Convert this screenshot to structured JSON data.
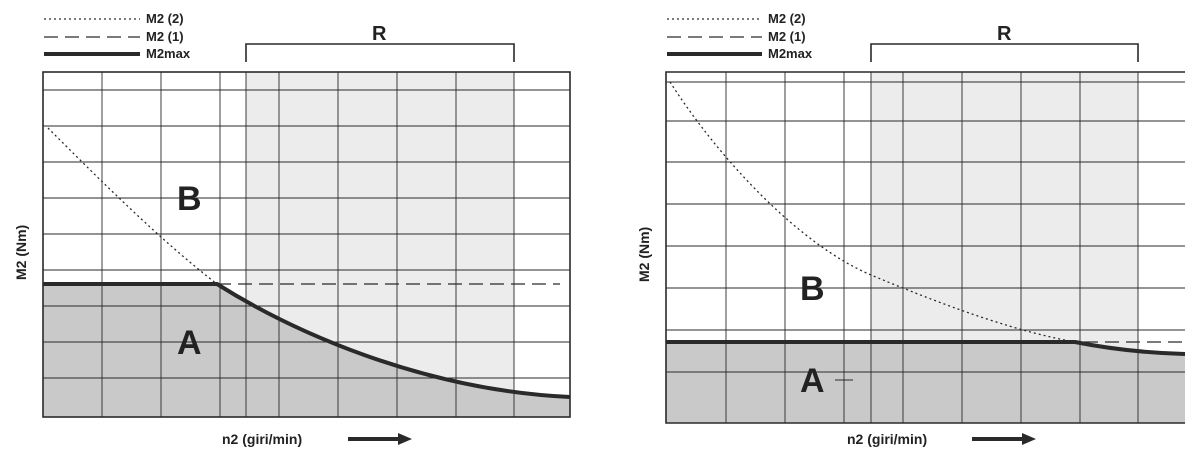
{
  "legend": {
    "items": [
      {
        "label": "M2 (2)",
        "style": "dotted"
      },
      {
        "label": "M2 (1)",
        "style": "dashed"
      },
      {
        "label": "M2max",
        "style": "solid-thick"
      }
    ]
  },
  "region_labels": {
    "a": "A",
    "b": "B",
    "r": "R"
  },
  "axes": {
    "x_label": "n2 (giri/min)",
    "y_label": "M2 (Nm)"
  },
  "colors": {
    "line": "#2a2a2a",
    "region_a_fill": "#c9c9c9",
    "region_r_fill": "#ececec",
    "background": "#ffffff"
  },
  "panels": [
    {
      "id": "left",
      "description": "Dotted M2(2) curve falls steeply and meets the flat M2max level near the start of region R; M2max then decreases.",
      "curves": {
        "m2_2": [
          [
            0.02,
            0.85
          ],
          [
            0.3,
            0.38
          ]
        ],
        "m2_1_level": 0.38,
        "m2max_flat_end": 0.3,
        "m2max_end_level": 0.07
      }
    },
    {
      "id": "right",
      "description": "Dotted M2(2) curve falls gradually and meets the low flat M2max level far inside region R.",
      "curves": {
        "m2_2_level_at_intersection": 0.22,
        "m2_1_level": 0.22,
        "m2max_flat_end": 0.78
      }
    }
  ]
}
